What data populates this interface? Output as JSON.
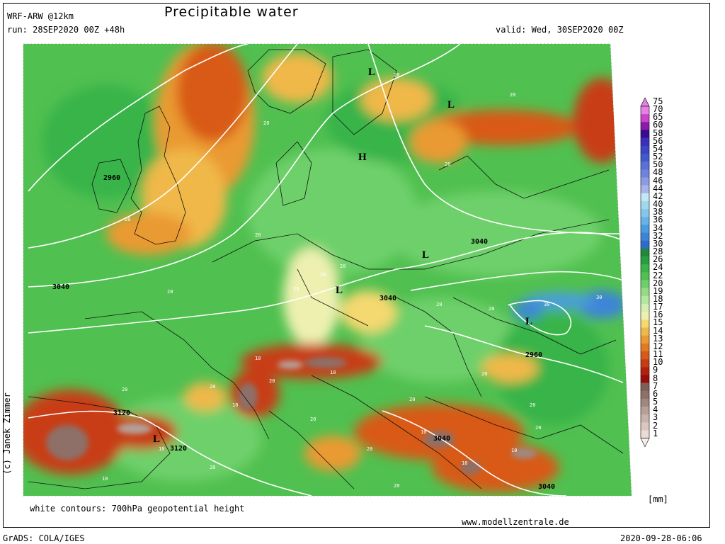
{
  "header": {
    "model": "WRF-ARW @12km",
    "title": "Precipitable water",
    "run": "run: 28SEP2020 00Z +48h",
    "valid": "valid: Wed, 30SEP2020 00Z"
  },
  "footer": {
    "contours_note": "white contours: 700hPa geopotential height",
    "website": "www.modellzentrale.de",
    "software": "GrADS: COLA/IGES",
    "timestamp": "2020-09-28-06:06",
    "credit": "(c) Janek Zimmer"
  },
  "legend": {
    "unit": "[mm]",
    "levels": [
      "75",
      "70",
      "65",
      "60",
      "58",
      "56",
      "54",
      "52",
      "50",
      "48",
      "46",
      "44",
      "42",
      "40",
      "38",
      "36",
      "34",
      "32",
      "30",
      "28",
      "26",
      "24",
      "22",
      "20",
      "19",
      "18",
      "17",
      "16",
      "15",
      "14",
      "13",
      "12",
      "11",
      "10",
      "9",
      "8",
      "7",
      "6",
      "5",
      "4",
      "3",
      "2",
      "1"
    ],
    "colors": [
      "#e680e6",
      "#cc44cc",
      "#8a1aa8",
      "#3a0a90",
      "#3b2dbd",
      "#3a46c8",
      "#3f5ad0",
      "#5a6fd8",
      "#6e83de",
      "#8c9ce4",
      "#a7b3ea",
      "#c2e8f8",
      "#a0d8f0",
      "#84c6ec",
      "#64b4e6",
      "#4a9ce0",
      "#3c84d8",
      "#2e6ccc",
      "#1e8a3a",
      "#24a040",
      "#38b448",
      "#50c050",
      "#6ed06a",
      "#94dc84",
      "#b4e8a0",
      "#d2f0b4",
      "#eef0b0",
      "#f4d870",
      "#f0b848",
      "#ea9a30",
      "#e47a20",
      "#d85a18",
      "#c83c14",
      "#b42010",
      "#9a0e0a",
      "#7e6058",
      "#8e7068",
      "#a08880",
      "#b6a098",
      "#c8b4ac",
      "#dac8c0",
      "#eadcd4",
      "#f6eee8"
    ],
    "top_arrow_color": "#e680e6",
    "bottom_arrow_color": "#f6eee8"
  },
  "map": {
    "contour_labels": [
      "2960",
      "3040",
      "3040",
      "3040",
      "3040",
      "2960",
      "3120",
      "3120",
      "3040",
      "3040"
    ],
    "pw_labels": [
      "20",
      "20",
      "20",
      "20",
      "20",
      "20",
      "20",
      "20",
      "20",
      "20",
      "20",
      "20",
      "20",
      "20",
      "20",
      "20",
      "20",
      "20",
      "20",
      "20",
      "20",
      "20",
      "20",
      "30",
      "30",
      "10",
      "10",
      "10",
      "10",
      "10",
      "10",
      "10",
      "10"
    ],
    "pressure_centers": [
      "L",
      "L",
      "H",
      "L",
      "L",
      "L",
      "L"
    ]
  }
}
